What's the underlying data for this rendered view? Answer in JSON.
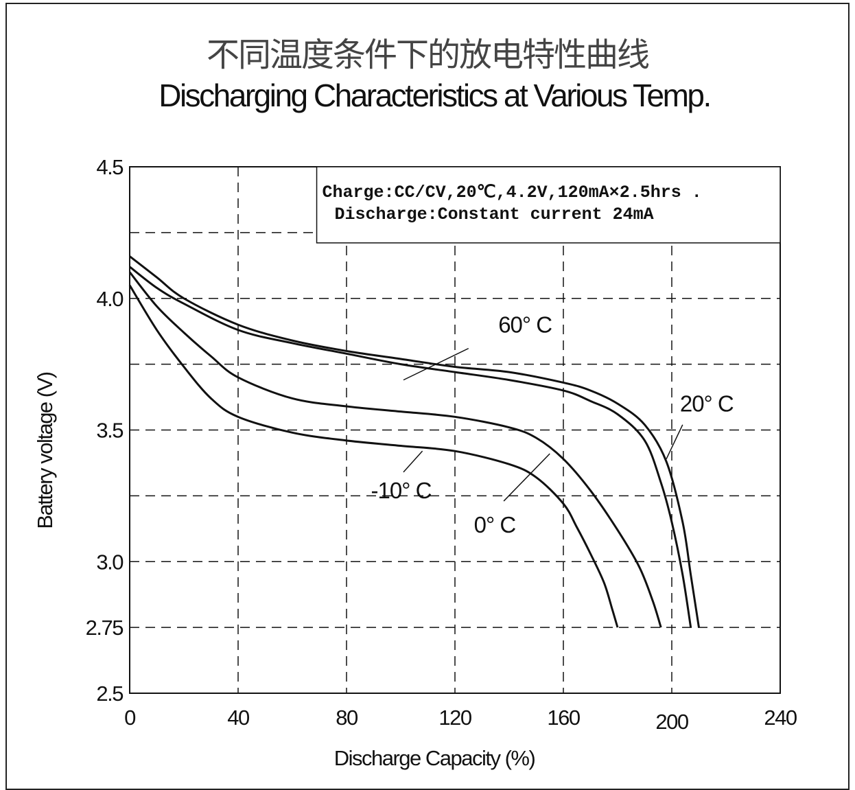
{
  "chart_data": {
    "type": "line",
    "title_cn": "不同温度条件下的放电特性曲线",
    "title": "Discharging Characteristics at Various Temp.",
    "xlabel": "Discharge Capacity (%)",
    "ylabel": "Battery voltage (V)",
    "xlim": [
      0,
      240
    ],
    "ylim": [
      2.5,
      4.5
    ],
    "x_ticks": [
      0,
      40,
      80,
      120,
      160,
      200,
      240
    ],
    "x_tick_labels": [
      "0",
      "40",
      "80",
      "120",
      "160",
      "200",
      "240"
    ],
    "y_ticks": [
      2.5,
      2.75,
      3.0,
      3.5,
      4.0,
      4.5
    ],
    "y_tick_labels": [
      "2.5",
      "2.75",
      "3.0",
      "3.5",
      "4.0",
      "4.5"
    ],
    "grid": true,
    "grid_x": [
      40,
      80,
      120,
      160,
      200
    ],
    "grid_y": [
      2.75,
      3.0,
      3.25,
      3.5,
      3.75,
      4.0,
      4.25
    ],
    "annotation": {
      "line1": "Charge:CC/CV,20℃,4.2V,120mA×2.5hrs .",
      "line2": "Discharge:Constant current 24mA"
    },
    "series": [
      {
        "name": "60° C",
        "x": [
          0,
          10,
          20,
          40,
          60,
          80,
          100,
          120,
          140,
          160,
          170,
          180,
          190,
          196,
          200,
          204,
          207
        ],
        "y": [
          4.12,
          4.04,
          3.98,
          3.88,
          3.83,
          3.79,
          3.75,
          3.72,
          3.69,
          3.65,
          3.61,
          3.56,
          3.46,
          3.3,
          3.15,
          2.95,
          2.75
        ]
      },
      {
        "name": "20° C",
        "x": [
          0,
          10,
          20,
          40,
          60,
          80,
          100,
          120,
          140,
          160,
          170,
          180,
          190,
          198,
          204,
          207,
          210
        ],
        "y": [
          4.16,
          4.08,
          4.0,
          3.9,
          3.84,
          3.8,
          3.77,
          3.74,
          3.72,
          3.68,
          3.65,
          3.6,
          3.52,
          3.38,
          3.15,
          2.95,
          2.75
        ]
      },
      {
        "name": "0° C",
        "x": [
          0,
          10,
          20,
          30,
          40,
          60,
          80,
          100,
          120,
          140,
          150,
          160,
          170,
          180,
          188,
          193,
          196
        ],
        "y": [
          4.1,
          3.97,
          3.87,
          3.78,
          3.7,
          3.62,
          3.59,
          3.57,
          3.55,
          3.51,
          3.47,
          3.39,
          3.27,
          3.12,
          2.98,
          2.85,
          2.75
        ]
      },
      {
        "name": "-10° C",
        "x": [
          0,
          10,
          20,
          30,
          40,
          60,
          80,
          100,
          120,
          140,
          150,
          160,
          165,
          170,
          175,
          178,
          180
        ],
        "y": [
          4.05,
          3.88,
          3.74,
          3.62,
          3.55,
          3.49,
          3.46,
          3.44,
          3.42,
          3.37,
          3.32,
          3.22,
          3.13,
          3.03,
          2.92,
          2.82,
          2.75
        ]
      }
    ],
    "series_labels": [
      {
        "text": "60° C",
        "pos": [
          136,
          3.87
        ],
        "line_from": [
          125,
          3.81
        ],
        "line_to": [
          101,
          3.69
        ]
      },
      {
        "text": "20° C",
        "pos": [
          203,
          3.57
        ],
        "line_from": [
          204,
          3.52
        ],
        "line_to": [
          198,
          3.39
        ]
      },
      {
        "text": "0° C",
        "pos": [
          127,
          3.11
        ],
        "line_from": [
          138,
          3.23
        ],
        "line_to": [
          155,
          3.41
        ]
      },
      {
        "text": "-10° C",
        "pos": [
          89,
          3.24
        ],
        "line_from": [
          101,
          3.34
        ],
        "line_to": [
          108,
          3.42
        ]
      }
    ]
  }
}
